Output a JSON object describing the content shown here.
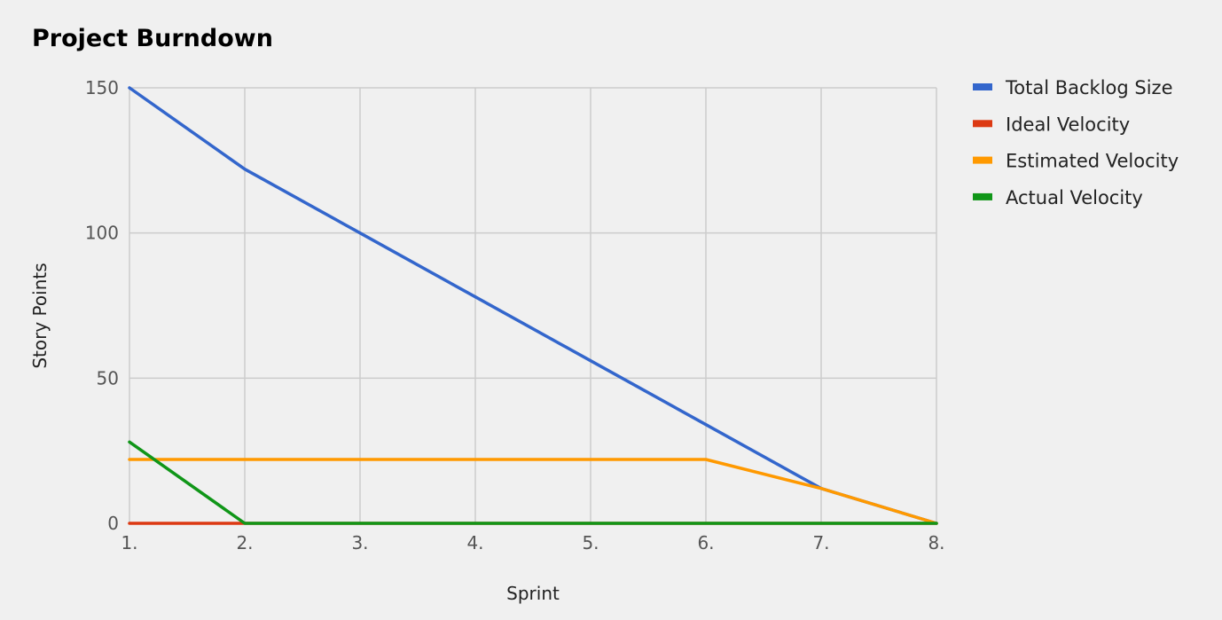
{
  "chart_data": {
    "type": "line",
    "title": "Project Burndown",
    "xlabel": "Sprint",
    "ylabel": "Story Points",
    "categories": [
      "1.",
      "2.",
      "3.",
      "4.",
      "5.",
      "6.",
      "7.",
      "8."
    ],
    "ylim": [
      0,
      150
    ],
    "yticks": [
      0,
      50,
      100,
      150
    ],
    "grid": true,
    "legend_position": "right",
    "series": [
      {
        "name": "Total Backlog Size",
        "color": "#3366cc",
        "values": [
          150,
          122,
          100,
          78,
          56,
          34,
          12,
          0
        ]
      },
      {
        "name": "Ideal Velocity",
        "color": "#dc3912",
        "values": [
          0,
          0,
          0,
          0,
          0,
          0,
          0,
          0
        ]
      },
      {
        "name": "Estimated Velocity",
        "color": "#ff9900",
        "values": [
          22,
          22,
          22,
          22,
          22,
          22,
          12,
          0
        ]
      },
      {
        "name": "Actual Velocity",
        "color": "#109618",
        "values": [
          28,
          0,
          0,
          0,
          0,
          0,
          0,
          0
        ]
      }
    ]
  }
}
